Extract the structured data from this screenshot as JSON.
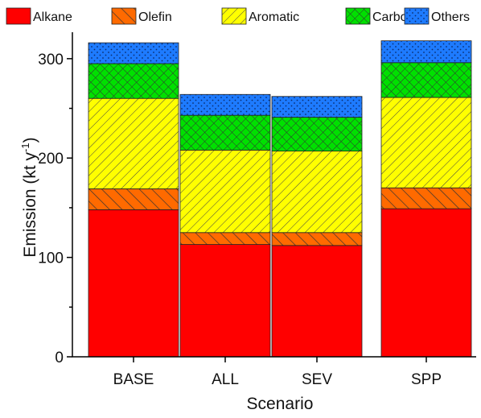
{
  "chart_data": {
    "type": "bar",
    "stacked": true,
    "categories": [
      "BASE",
      "ALL",
      "SEV",
      "SPP"
    ],
    "series": [
      {
        "name": "Alkane",
        "color": "#ff0000",
        "pattern": "solid",
        "values": [
          148,
          113,
          112,
          149
        ]
      },
      {
        "name": "Olefin",
        "color": "#ff6a00",
        "pattern": "diagonal-wide",
        "values": [
          21,
          12,
          13,
          21
        ]
      },
      {
        "name": "Aromatic",
        "color": "#ffff00",
        "pattern": "diagonal-fine",
        "values": [
          91,
          83,
          82,
          91
        ]
      },
      {
        "name": "Carbonyl",
        "color": "#00e000",
        "pattern": "crosshatch",
        "values": [
          35,
          35,
          34,
          35
        ]
      },
      {
        "name": "Others",
        "color": "#1e7bff",
        "pattern": "dots",
        "values": [
          21,
          21,
          21,
          22
        ]
      }
    ],
    "xlabel": "Scenario",
    "ylabel_main": "Emission (kt y",
    "ylabel_sup": "-1",
    "ylabel_end": ")",
    "ylim": [
      0,
      325
    ],
    "yticks": [
      "0",
      "100",
      "200",
      "300"
    ],
    "legend_position": "top"
  }
}
